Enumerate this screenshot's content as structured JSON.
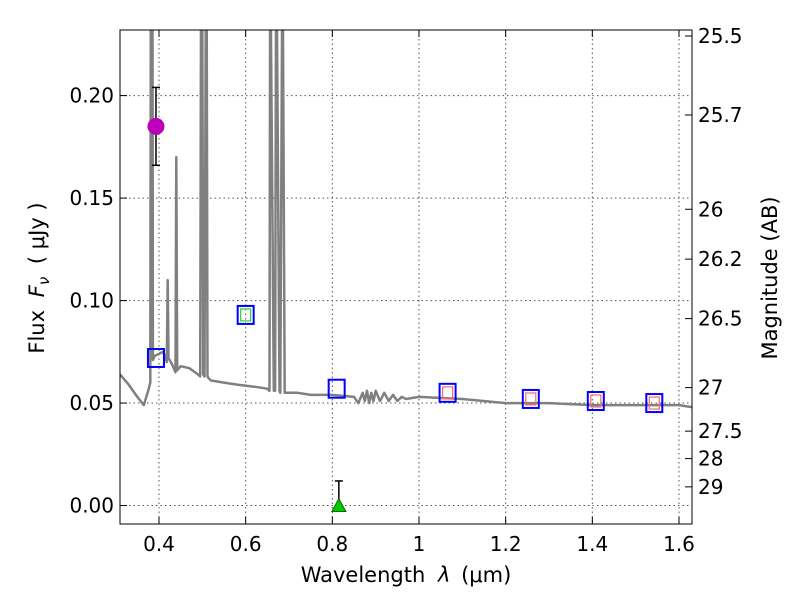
{
  "chart_data": {
    "type": "scatter",
    "xlabel_prefix": "Wavelength",
    "xlabel_symbol": "λ",
    "xlabel_unit": "(μm)",
    "ylabel_prefix": "Flux",
    "ylabel_symbol": "F",
    "ylabel_subscript": "ν",
    "ylabel_unit": "( μJy )",
    "y2label": "Magnitude (AB)",
    "xlim": [
      0.31,
      1.63
    ],
    "ylim": [
      -0.009,
      0.232
    ],
    "x_ticks": [
      {
        "value": 0.4,
        "label": "0.4"
      },
      {
        "value": 0.6,
        "label": "0.6"
      },
      {
        "value": 0.8,
        "label": "0.8"
      },
      {
        "value": 1.0,
        "label": "1"
      },
      {
        "value": 1.2,
        "label": "1.2"
      },
      {
        "value": 1.4,
        "label": "1.4"
      },
      {
        "value": 1.6,
        "label": "1.6"
      }
    ],
    "y_ticks": [
      {
        "value": 0.0,
        "label": "0.00"
      },
      {
        "value": 0.05,
        "label": "0.05"
      },
      {
        "value": 0.1,
        "label": "0.10"
      },
      {
        "value": 0.15,
        "label": "0.15"
      },
      {
        "value": 0.2,
        "label": "0.20"
      }
    ],
    "mag_ticks": [
      {
        "value": 25.5,
        "label": "25.5"
      },
      {
        "value": 25.7,
        "label": "25.7"
      },
      {
        "value": 26.0,
        "label": "26"
      },
      {
        "value": 26.2,
        "label": "26.2"
      },
      {
        "value": 26.5,
        "label": "26.5"
      },
      {
        "value": 27.0,
        "label": "27"
      },
      {
        "value": 27.5,
        "label": "27.5"
      },
      {
        "value": 28.0,
        "label": "28"
      },
      {
        "value": 29.0,
        "label": "29"
      }
    ],
    "series": [
      {
        "name": "template-spectrum",
        "kind": "line",
        "color": "#808080",
        "x": [
          0.31,
          0.33,
          0.35,
          0.365,
          0.375,
          0.38,
          0.381,
          0.385,
          0.386,
          0.39,
          0.41,
          0.418,
          0.42,
          0.422,
          0.43,
          0.438,
          0.44,
          0.442,
          0.45,
          0.47,
          0.49,
          0.495,
          0.497,
          0.5,
          0.502,
          0.505,
          0.508,
          0.51,
          0.512,
          0.515,
          0.52,
          0.55,
          0.58,
          0.62,
          0.65,
          0.655,
          0.6563,
          0.658,
          0.665,
          0.668,
          0.67,
          0.672,
          0.678,
          0.68,
          0.684,
          0.686,
          0.69,
          0.72,
          0.75,
          0.8,
          0.85,
          0.86,
          0.87,
          0.875,
          0.88,
          0.885,
          0.89,
          0.895,
          0.9,
          0.91,
          0.92,
          0.93,
          0.94,
          0.95,
          0.96,
          0.97,
          1.0,
          1.1,
          1.2,
          1.3,
          1.4,
          1.5,
          1.6,
          1.63
        ],
        "y": [
          0.064,
          0.059,
          0.053,
          0.049,
          0.056,
          0.06,
          0.24,
          0.24,
          0.071,
          0.073,
          0.075,
          0.07,
          0.11,
          0.072,
          0.069,
          0.065,
          0.17,
          0.066,
          0.068,
          0.067,
          0.064,
          0.063,
          0.24,
          0.24,
          0.064,
          0.063,
          0.24,
          0.24,
          0.063,
          0.062,
          0.061,
          0.06,
          0.059,
          0.058,
          0.057,
          0.056,
          0.24,
          0.24,
          0.056,
          0.056,
          0.24,
          0.24,
          0.056,
          0.055,
          0.24,
          0.24,
          0.055,
          0.055,
          0.054,
          0.054,
          0.053,
          0.05,
          0.055,
          0.051,
          0.056,
          0.05,
          0.055,
          0.051,
          0.056,
          0.051,
          0.055,
          0.051,
          0.054,
          0.051,
          0.053,
          0.052,
          0.053,
          0.052,
          0.05,
          0.05,
          0.049,
          0.049,
          0.049,
          0.048
        ]
      },
      {
        "name": "model-photometry",
        "kind": "square",
        "color": "#0000ff",
        "x": [
          0.393,
          0.6,
          0.81,
          1.066,
          1.258,
          1.408,
          1.543
        ],
        "y": [
          0.072,
          0.093,
          0.057,
          0.055,
          0.052,
          0.051,
          0.05
        ]
      },
      {
        "name": "observed-nir",
        "kind": "small-square",
        "color": "#ff6666",
        "x": [
          1.066,
          1.258,
          1.408,
          1.543
        ],
        "y": [
          0.055,
          0.052,
          0.051,
          0.05
        ]
      },
      {
        "name": "observed-optical",
        "kind": "small-square",
        "color": "#33cc33",
        "x": [
          0.6
        ],
        "y": [
          0.093
        ]
      },
      {
        "name": "observed-uband",
        "kind": "circle",
        "color": "#bb00bb",
        "x": [
          0.393
        ],
        "y": [
          0.185
        ],
        "yerr": [
          0.019
        ]
      },
      {
        "name": "observed-upper-limit",
        "kind": "triangle",
        "color": "#00cc00",
        "x": [
          0.815
        ],
        "y": [
          0.0
        ],
        "yerr_low": [
          0.0
        ],
        "yerr_high": [
          0.012
        ]
      }
    ]
  }
}
